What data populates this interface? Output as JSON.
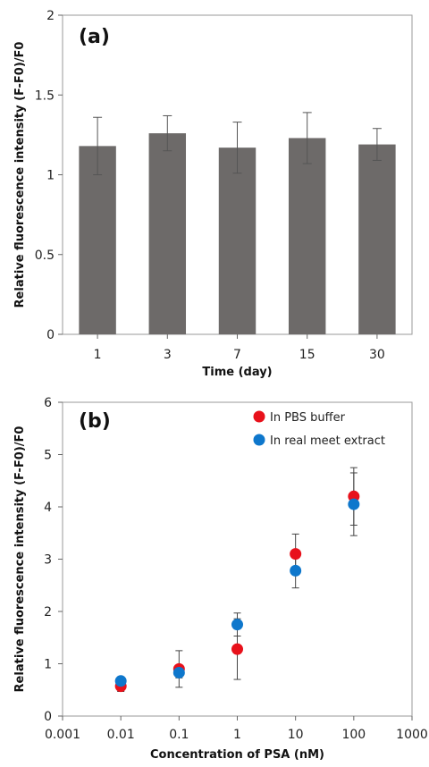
{
  "chart_data": [
    {
      "type": "bar",
      "panel_label": "(a)",
      "title": "",
      "xlabel": "Time (day)",
      "ylabel": "Relative fluorescence intensity (F-F0)/F0",
      "categories": [
        "1",
        "3",
        "7",
        "15",
        "30"
      ],
      "values": [
        1.18,
        1.26,
        1.17,
        1.23,
        1.19
      ],
      "errors": [
        0.18,
        0.11,
        0.16,
        0.16,
        0.1
      ],
      "ylim": [
        0,
        2
      ],
      "yticks": [
        0,
        0.5,
        1,
        1.5,
        2
      ],
      "ytick_labels": [
        "0",
        "0.5",
        "1",
        "1.5",
        "2"
      ],
      "grid": false,
      "bar_color": "#6d6a69"
    },
    {
      "type": "scatter",
      "panel_label": "(b)",
      "title": "",
      "xlabel": "Concentration of PSA (nM)",
      "ylabel": "Relative fluorescence intensity (F-F0)/F0",
      "xscale": "log",
      "xlim": [
        0.001,
        1000
      ],
      "xticks": [
        0.001,
        0.01,
        0.1,
        1,
        10,
        100,
        1000
      ],
      "xtick_labels": [
        "0.001",
        "0.01",
        "0.1",
        "1",
        "10",
        "100",
        "1000"
      ],
      "ylim": [
        0,
        6
      ],
      "yticks": [
        0,
        1,
        2,
        3,
        4,
        5,
        6
      ],
      "ytick_labels": [
        "0",
        "1",
        "2",
        "3",
        "4",
        "5",
        "6"
      ],
      "grid": false,
      "legend_position": "top-right",
      "series": [
        {
          "name": "In PBS buffer",
          "color": "#e8111b",
          "x": [
            0.01,
            0.1,
            1,
            10,
            100
          ],
          "y": [
            0.57,
            0.9,
            1.28,
            3.1,
            4.2
          ],
          "errors": [
            0.1,
            0.35,
            0.58,
            0.38,
            0.55
          ]
        },
        {
          "name": "In real meet extract",
          "color": "#0e77cc",
          "x": [
            0.01,
            0.1,
            1,
            10,
            100
          ],
          "y": [
            0.67,
            0.83,
            1.75,
            2.78,
            4.05
          ],
          "errors": [
            0.08,
            0.1,
            0.22,
            0.33,
            0.6
          ]
        }
      ]
    }
  ]
}
